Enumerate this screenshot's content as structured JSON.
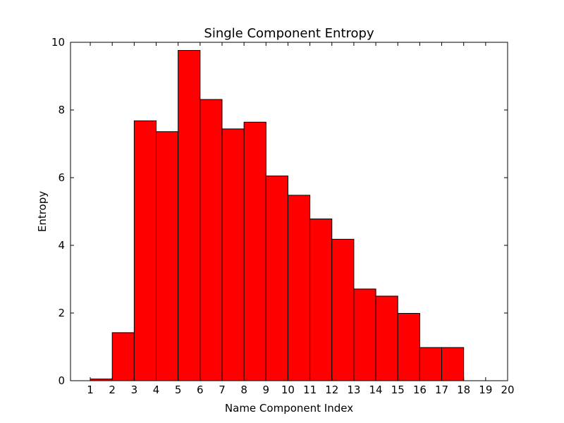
{
  "chart_data": {
    "type": "bar",
    "title": "Single Component Entropy",
    "xlabel": "Name Component Index",
    "ylabel": "Entropy",
    "xlim": [
      0.1,
      20
    ],
    "ylim": [
      0,
      10
    ],
    "xticks": [
      1,
      2,
      3,
      4,
      5,
      6,
      7,
      8,
      9,
      10,
      11,
      12,
      13,
      14,
      15,
      16,
      17,
      18,
      19,
      20
    ],
    "yticks": [
      0,
      2,
      4,
      6,
      8,
      10
    ],
    "bar_color": "#ff0000",
    "edge_color": "#000000",
    "grid": false,
    "legend": "none",
    "bars": [
      {
        "x_start": 1,
        "x_end": 2,
        "value": 0.05
      },
      {
        "x_start": 2,
        "x_end": 3,
        "value": 1.42
      },
      {
        "x_start": 3,
        "x_end": 4,
        "value": 7.68
      },
      {
        "x_start": 4,
        "x_end": 5,
        "value": 7.36
      },
      {
        "x_start": 5,
        "x_end": 6,
        "value": 9.76
      },
      {
        "x_start": 6,
        "x_end": 7,
        "value": 8.31
      },
      {
        "x_start": 7,
        "x_end": 8,
        "value": 7.44
      },
      {
        "x_start": 8,
        "x_end": 9,
        "value": 7.64
      },
      {
        "x_start": 9,
        "x_end": 10,
        "value": 6.05
      },
      {
        "x_start": 10,
        "x_end": 11,
        "value": 5.48
      },
      {
        "x_start": 11,
        "x_end": 12,
        "value": 4.78
      },
      {
        "x_start": 12,
        "x_end": 13,
        "value": 4.18
      },
      {
        "x_start": 13,
        "x_end": 14,
        "value": 2.71
      },
      {
        "x_start": 14,
        "x_end": 15,
        "value": 2.5
      },
      {
        "x_start": 15,
        "x_end": 16,
        "value": 1.99
      },
      {
        "x_start": 16,
        "x_end": 17,
        "value": 0.98
      },
      {
        "x_start": 17,
        "x_end": 18,
        "value": 0.98
      }
    ]
  }
}
